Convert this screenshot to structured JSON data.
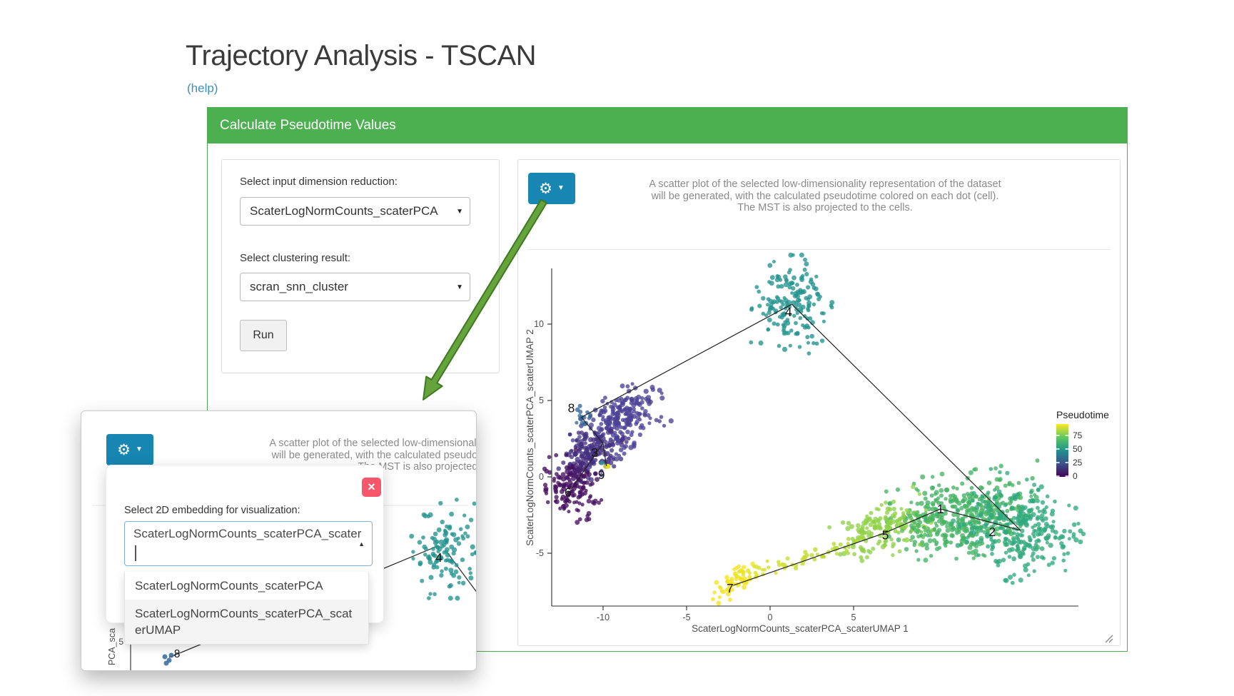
{
  "page": {
    "title": "Trajectory Analysis - TSCAN",
    "help_link": "(help)"
  },
  "icons": {
    "gear": "⚙",
    "caret_down": "▼",
    "caret_up": "▲",
    "close": "×"
  },
  "card": {
    "header": "Calculate Pseudotime Values",
    "accent_color": "#4caf50"
  },
  "form": {
    "dim_reduction_label": "Select input dimension reduction:",
    "dim_reduction_value": "ScaterLogNormCounts_scaterPCA",
    "clustering_label": "Select clustering result:",
    "clustering_value": "scran_snn_cluster",
    "run_label": "Run"
  },
  "plot_panel": {
    "settings_button_color": "#1786b2",
    "description_lines": [
      "A scatter plot of the selected low-dimensionality representation of the dataset",
      "will be generated, with the calculated pseudotime colored on each dot (cell).",
      "The MST is also projected to the cells."
    ]
  },
  "chart_data": {
    "type": "scatter",
    "title": "",
    "xlabel": "ScaterLogNormCounts_scaterPCA_scaterUMAP 1",
    "ylabel": "ScaterLogNormCounts_scaterPCA_scaterUMAP 2",
    "x_ticks": [
      -10,
      -5,
      0,
      5
    ],
    "y_ticks": [
      10,
      5,
      0,
      -5
    ],
    "xlim": [
      -13,
      18.5
    ],
    "ylim": [
      -8.4,
      13.8
    ],
    "grid": false,
    "legend": {
      "title": "Pseudotime",
      "position": "right",
      "ticks": [
        75,
        50,
        25,
        0
      ],
      "colormap": "viridis",
      "gradient_top_to_bottom": [
        "#fde725",
        "#5ec962",
        "#21918c",
        "#3b528b",
        "#440154"
      ]
    },
    "clusters": [
      {
        "id": "1",
        "color": "#45b364",
        "vertex": [
          10.2,
          -2.1
        ],
        "label_pos": [
          10.2,
          -2.1
        ],
        "blobs": [
          {
            "cx": 11.7,
            "cy": -2.5,
            "sx": 2.05,
            "sy": 1.25,
            "rot": 8,
            "n": 400
          }
        ]
      },
      {
        "id": "2",
        "color": "#2fa97e",
        "vertex": [
          15.0,
          -3.5
        ],
        "label_pos": [
          13.3,
          -3.6
        ],
        "blobs": [
          {
            "cx": 14.8,
            "cy": -3.5,
            "sx": 1.65,
            "sy": 1.45,
            "rot": -20,
            "n": 280
          }
        ]
      },
      {
        "id": "3",
        "color": "#473d8a",
        "vertex": [
          -10.0,
          2.2
        ],
        "label_pos": [
          -10.5,
          1.6
        ],
        "blobs": [
          {
            "cx": -9.0,
            "cy": 3.7,
            "sx": 1.3,
            "sy": 0.85,
            "rot": 35,
            "n": 230,
            "color": "#4c4196"
          },
          {
            "cx": -10.7,
            "cy": 1.7,
            "sx": 0.95,
            "sy": 0.75,
            "rot": 40,
            "n": 150,
            "color": "#453282"
          }
        ]
      },
      {
        "id": "4",
        "color": "#23948e",
        "vertex": [
          1.3,
          11.3
        ],
        "label_pos": [
          1.1,
          10.8
        ],
        "blobs": [
          {
            "cx": 1.3,
            "cy": 11.3,
            "sx": 1.1,
            "sy": 1.4,
            "rot": 0,
            "n": 160
          }
        ]
      },
      {
        "id": "5",
        "color": "#8fd148",
        "vertex": [
          6.8,
          -3.7
        ],
        "label_pos": [
          6.9,
          -3.8
        ],
        "blobs": [
          {
            "cx": 6.6,
            "cy": -3.5,
            "sx": 1.3,
            "sy": 0.8,
            "rot": 22,
            "n": 150
          }
        ]
      },
      {
        "id": "6",
        "color": "#471060",
        "vertex": [
          -11.9,
          -0.8
        ],
        "label_pos": [
          -12.1,
          -1.0
        ],
        "blobs": [
          {
            "cx": -11.9,
            "cy": -0.7,
            "sx": 0.7,
            "sy": 1.0,
            "rot": 15,
            "n": 130
          }
        ]
      },
      {
        "id": "7",
        "color": "#f2e41f",
        "vertex": [
          -2.2,
          -7.1
        ],
        "label_pos": [
          -2.4,
          -7.3
        ],
        "blobs": [
          {
            "cx": -2.2,
            "cy": -6.9,
            "sx": 0.75,
            "sy": 0.32,
            "rot": 40,
            "n": 55
          }
        ]
      },
      {
        "id": "8",
        "color": "#35679b",
        "vertex": [
          -11.3,
          3.9
        ],
        "label_pos": [
          -11.9,
          4.5
        ],
        "blobs": [
          {
            "cx": -11.3,
            "cy": 3.9,
            "sx": 0.3,
            "sy": 0.22,
            "rot": -40,
            "n": 14
          }
        ]
      },
      {
        "id": "9",
        "color": "#e0de1f",
        "vertex": [
          -9.8,
          0.7
        ],
        "label_pos": [
          -10.1,
          0.15
        ],
        "blobs": [
          {
            "cx": -9.8,
            "cy": 0.7,
            "sx": 0.07,
            "sy": 0.07,
            "rot": 0,
            "n": 3
          },
          {
            "cx": -10.1,
            "cy": 0.95,
            "sx": 0.05,
            "sy": 0.05,
            "rot": 0,
            "n": 1,
            "color": "#2a9d8f"
          }
        ]
      }
    ],
    "mst_edges": [
      [
        "8",
        "4"
      ],
      [
        "4",
        "2"
      ],
      [
        "2",
        "1"
      ],
      [
        "1",
        "5"
      ],
      [
        "5",
        "7"
      ],
      [
        "8",
        "3"
      ],
      [
        "3",
        "9"
      ],
      [
        "3",
        "6"
      ]
    ],
    "tails": [
      {
        "from": [
          5.4,
          -4.2
        ],
        "to": [
          -1.8,
          -6.6
        ],
        "color_from": "#a6d63a",
        "color_to": "#e9e326",
        "n": 65,
        "jitter": 0.22
      },
      {
        "from": [
          -11.6,
          -0.1
        ],
        "to": [
          -10.9,
          1.3
        ],
        "color_from": "#471365",
        "color_to": "#453282",
        "n": 40,
        "jitter": 0.2
      },
      {
        "from": [
          8.2,
          -3.3
        ],
        "to": [
          10.0,
          -2.6
        ],
        "color_from": "#6cc455",
        "color_to": "#45b364",
        "n": 40,
        "jitter": 0.5
      },
      {
        "from": [
          0.95,
          10.2
        ],
        "to": [
          0.85,
          9.25
        ],
        "color_from": "#23948e",
        "color_to": "#2a9d8f",
        "n": 8,
        "jitter": 0.1
      }
    ]
  },
  "popup": {
    "dropdown": {
      "label": "Select 2D embedding for visualization:",
      "value": "ScaterLogNormCounts_scaterPCA_scater",
      "options": [
        "ScaterLogNormCounts_scaterPCA",
        "ScaterLogNormCounts_scaterPCA_scaterUMAP"
      ]
    },
    "plot_fragment": {
      "cluster4_label": "4",
      "cluster8_label": "8",
      "y_tick_label": "5",
      "y_axis_fragment": "PCA_sca"
    }
  }
}
